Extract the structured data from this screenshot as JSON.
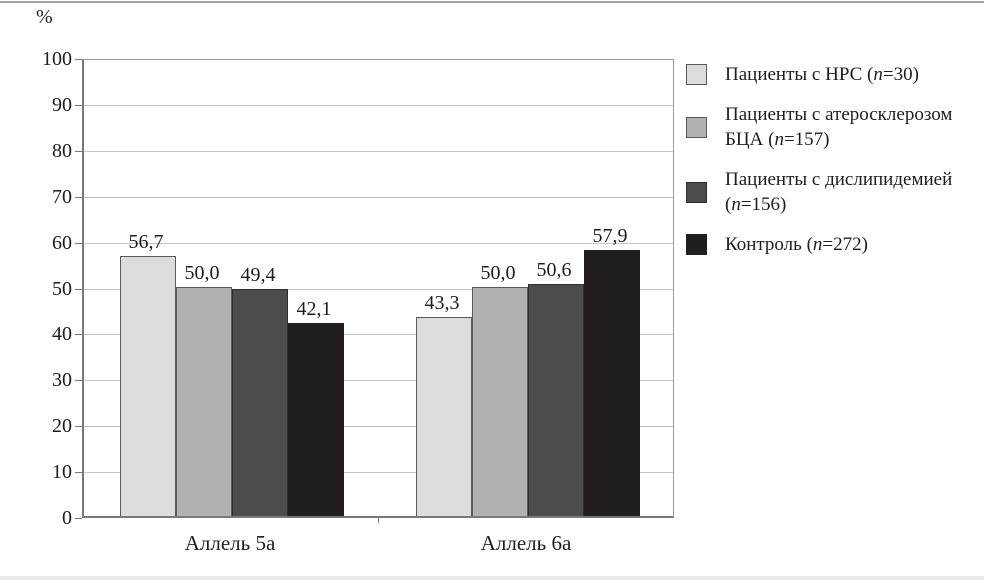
{
  "chart_data": {
    "type": "bar",
    "title": "",
    "xlabel": "",
    "ylabel": "%",
    "ylim": [
      0,
      100
    ],
    "y_ticks": [
      0,
      10,
      20,
      30,
      40,
      50,
      60,
      70,
      80,
      90,
      100
    ],
    "grid": true,
    "legend_position": "right",
    "decimal_separator": ",",
    "categories": [
      "Аллель 5а",
      "Аллель 6а"
    ],
    "series": [
      {
        "name": "Пациенты с НРС (n=30)",
        "legend_label": "Пациенты с НРС",
        "n": "30",
        "color": "#dcdcdc",
        "border_color": "#58595b",
        "values": [
          56.7,
          43.3
        ],
        "value_labels": [
          "56,7",
          "43,3"
        ]
      },
      {
        "name": "Пациенты с атеросклерозом БЦА (n=157)",
        "legend_label": "Пациенты с атеросклерозом БЦА",
        "n": "157",
        "color": "#b1b1b3",
        "border_color": "#58595b",
        "values": [
          50.0,
          50.0
        ],
        "value_labels": [
          "50,0",
          "50,0"
        ]
      },
      {
        "name": "Пациенты с дислипидемией (n=156)",
        "legend_label": "Пациенты с дислипидемией",
        "n": "156",
        "color": "#4c4c4e",
        "border_color": "#2e2e30",
        "values": [
          49.4,
          50.6
        ],
        "value_labels": [
          "49,4",
          "50,6"
        ]
      },
      {
        "name": "Контроль (n=272)",
        "legend_label": "Контроль",
        "n": "272",
        "color": "#221e1f",
        "border_color": "#221e1f",
        "values": [
          42.1,
          57.9
        ],
        "value_labels": [
          "42,1",
          "57,9"
        ]
      }
    ]
  }
}
